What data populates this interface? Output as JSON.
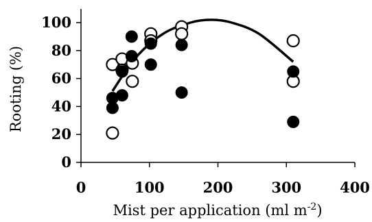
{
  "chart_data": {
    "type": "scatter",
    "xlabel": "Mist per application (ml m",
    "xlabel_sup": "-2",
    "xlabel_end": ")",
    "ylabel": "Rooting (%)",
    "xlim": [
      0,
      400
    ],
    "ylim": [
      0,
      100
    ],
    "xticks": [
      "0",
      "100",
      "200",
      "300",
      "400"
    ],
    "yticks": [
      "0",
      "20",
      "40",
      "60",
      "80",
      "100"
    ],
    "grid": false,
    "series": [
      {
        "marker": "open-circle",
        "points": [
          {
            "x": 46,
            "y": 70
          },
          {
            "x": 46,
            "y": 21
          },
          {
            "x": 60,
            "y": 74
          },
          {
            "x": 60,
            "y": 66
          },
          {
            "x": 75,
            "y": 71
          },
          {
            "x": 75,
            "y": 58
          },
          {
            "x": 102,
            "y": 92
          },
          {
            "x": 102,
            "y": 87
          },
          {
            "x": 147,
            "y": 97
          },
          {
            "x": 147,
            "y": 92
          },
          {
            "x": 310,
            "y": 87
          },
          {
            "x": 310,
            "y": 58
          }
        ]
      },
      {
        "marker": "filled-circle",
        "points": [
          {
            "x": 46,
            "y": 46
          },
          {
            "x": 46,
            "y": 39
          },
          {
            "x": 60,
            "y": 65
          },
          {
            "x": 60,
            "y": 48
          },
          {
            "x": 74,
            "y": 90
          },
          {
            "x": 74,
            "y": 76
          },
          {
            "x": 102,
            "y": 85
          },
          {
            "x": 102,
            "y": 70
          },
          {
            "x": 147,
            "y": 84
          },
          {
            "x": 147,
            "y": 50
          },
          {
            "x": 310,
            "y": 65
          },
          {
            "x": 310,
            "y": 29
          }
        ]
      }
    ],
    "trendline": {
      "type": "quadratic",
      "x_range": [
        46,
        310
      ],
      "points": [
        {
          "x": 46,
          "y": 51
        },
        {
          "x": 80,
          "y": 75
        },
        {
          "x": 120,
          "y": 92
        },
        {
          "x": 160,
          "y": 100
        },
        {
          "x": 190,
          "y": 102
        },
        {
          "x": 220,
          "y": 100
        },
        {
          "x": 260,
          "y": 92
        },
        {
          "x": 310,
          "y": 72
        }
      ]
    }
  }
}
